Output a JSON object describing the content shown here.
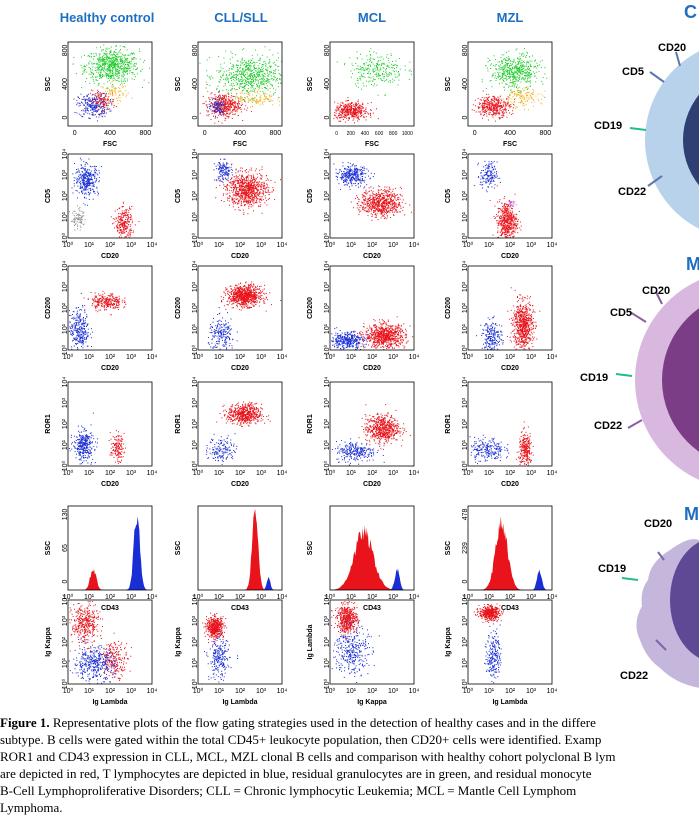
{
  "columns": [
    {
      "title": "Healthy control"
    },
    {
      "title": "CLL/SLL"
    },
    {
      "title": "MCL"
    },
    {
      "title": "MZL"
    }
  ],
  "colors": {
    "b_cells": "#e8131b",
    "t_cells": "#1a2ed6",
    "granulocytes": "#1fcc2b",
    "monocytes": "#f3b21d",
    "title_blue": "#1f6fc1",
    "cell_outer_1": "#a9c7e3",
    "cell_outer_2": "#cfa9d8",
    "cell_outer_3": "#bba8d6"
  },
  "rows": [
    {
      "xlabel": "FSC",
      "ylabel": "SSC",
      "xticks": [
        "0",
        "400",
        "800"
      ],
      "yticks": [
        "0",
        "400",
        "800"
      ]
    },
    {
      "xlabel": "CD20",
      "ylabel": "CD5",
      "xticks": [
        "10⁰",
        "10¹",
        "10²",
        "10³",
        "10⁴"
      ],
      "yticks": [
        "10⁰",
        "10¹",
        "10²",
        "10³",
        "10⁴"
      ]
    },
    {
      "xlabel": "CD20",
      "ylabel": "CD200",
      "xticks": [
        "10⁰",
        "10¹",
        "10²",
        "10³",
        "10⁴"
      ],
      "yticks": [
        "10⁰",
        "10¹",
        "10²",
        "10³",
        "10⁴"
      ]
    },
    {
      "xlabel": "CD20",
      "ylabel": "ROR1",
      "xticks": [
        "10⁰",
        "10¹",
        "10²",
        "10³",
        "10⁴"
      ],
      "yticks": [
        "10⁰",
        "10¹",
        "10²",
        "10³",
        "10⁴"
      ]
    },
    {
      "xlabel": "CD43",
      "ylabel": "SSC",
      "xticks": [
        "10⁰",
        "10¹",
        "10²",
        "10³",
        "10⁴"
      ],
      "yticks": []
    },
    {
      "xlabel": "Ig Lambda",
      "ylabel": "Ig Kappa",
      "xticks": [
        "10⁰",
        "10¹",
        "10²",
        "10³",
        "10⁴"
      ],
      "yticks": [
        "10⁰",
        "10¹",
        "10²",
        "10³",
        "10⁴"
      ]
    }
  ],
  "special_labels": {
    "mcl_last_row_xlabel": "Ig Kappa",
    "mcl_last_row_ylabel": "Ig Lambda",
    "healthy_histogram_yticks": [
      "0",
      "65",
      "130"
    ],
    "mzl_histogram_yticks": [
      "0",
      "239",
      "478"
    ],
    "mcl_fsc_xticks": [
      "0",
      "200",
      "400",
      "600",
      "800",
      "1000"
    ]
  },
  "cell_diagram": {
    "headings": [
      "C",
      "M",
      "M"
    ],
    "cell1_markers": [
      "CD20",
      "CD5",
      "CD19",
      "CD22"
    ],
    "cell2_markers": [
      "CD20",
      "CD5",
      "CD19",
      "CD22"
    ],
    "cell3_markers": [
      "CD20",
      "CD19",
      "CD22"
    ]
  },
  "caption": {
    "figure_label": "Figure 1.",
    "lines": [
      " Representative plots of the flow gating strategies used in the detection of healthy cases and in the differe",
      "subtype. B cells were gated within the total CD45+ leukocyte population, then CD20+ cells were identified. Examp",
      "ROR1 and CD43 expression in CLL, MCL, MZL clonal B cells and comparison with healthy cohort polyclonal B lym",
      "are depicted in red, T lymphocytes are depicted in blue, residual granulocytes are in green, and residual monocyte",
      "B-Cell Lymphoproliferative Disorders; CLL = Chronic lymphocytic Leukemia; MCL = Mantle Cell Lymphom",
      "Lymphoma."
    ]
  }
}
